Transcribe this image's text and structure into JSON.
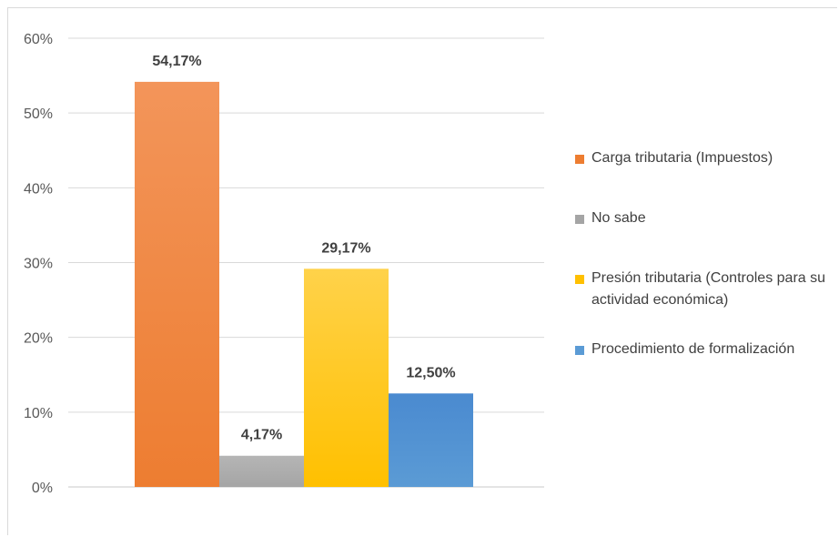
{
  "chart_data": {
    "type": "bar",
    "title": "",
    "xlabel": "",
    "ylabel": "",
    "ylim": [
      0,
      60
    ],
    "y_ticks": [
      "0%",
      "10%",
      "20%",
      "30%",
      "40%",
      "50%",
      "60%"
    ],
    "grid": true,
    "legend_position": "right",
    "series": [
      {
        "name": "Carga tributaria (Impuestos)",
        "value": 54.17,
        "label": "54,17%",
        "color": "#ED7D31",
        "color_top": "#F3955A"
      },
      {
        "name": "No sabe",
        "value": 4.17,
        "label": "4,17%",
        "color": "#A5A5A5",
        "color_top": "#B5B5B5"
      },
      {
        "name": "Presión tributaria (Controles para su actividad económica)",
        "value": 29.17,
        "label": "29,17%",
        "color": "#FFC000",
        "color_top": "#FFD24A"
      },
      {
        "name": "Procedimiento de formalización",
        "value": 12.5,
        "label": "12,50%",
        "color": "#5B9BD5",
        "color_top": "#4A8AD0"
      }
    ]
  }
}
